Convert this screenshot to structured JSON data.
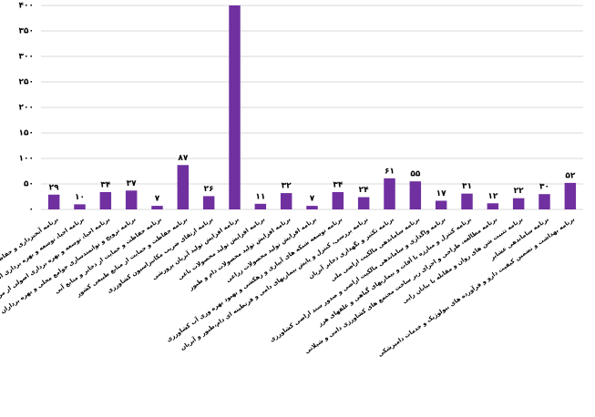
{
  "chart_data": {
    "type": "bar",
    "color": "#7030a0",
    "grid": true,
    "ylim": [
      0,
      400
    ],
    "yticks": [
      {
        "value": 0,
        "label": "۰"
      },
      {
        "value": 50,
        "label": "۵۰"
      },
      {
        "value": 100,
        "label": "۱۰۰"
      },
      {
        "value": 150,
        "label": "۱۵۰"
      },
      {
        "value": 200,
        "label": "۲۰۰"
      },
      {
        "value": 250,
        "label": "۲۵۰"
      },
      {
        "value": 300,
        "label": "۳۰۰"
      },
      {
        "value": 350,
        "label": "۳۵۰"
      },
      {
        "value": 400,
        "label": "۴۰۰"
      }
    ],
    "categories": [
      "برنامه آبخیزداری و حفاظت خاک",
      "برنامه احیا، توسعه و بهره برداری اصولی از جنگلهای",
      "برنامه احیا، توسعه و بهره برداری اصولی از مراتع کشور",
      "برنامه ترویج و توانمندسازی جوامع محلی و بهره برداران",
      "برنامه حفاظت و حمایت از ذخایر و منابع آبی",
      "برنامه حفاظت و حمایت از منابع طبیعی کشور",
      "برنامه ارتقای ضریب مکانیزاسیون کشاورزی",
      "برنامه افزایش تولید آبزیان پرورشی",
      "برنامه افزایش تولید محصولات باغی",
      "برنامه افزایش تولید محصولات دام و طیور",
      "برنامه افزایش تولید محصولات زراعی",
      "برنامه توسعه شبکه های آبیاری و زهکشی و بهبود بهره وری آب کشاورزی",
      "برنامه بررسی، کنترل و پایش بیماریهای دامی و قرنطینه ای دام،طیور و آبزیان",
      "برنامه تکثیر و نگهداری ذخایر آبزیان",
      "برنامه ساماندهی مالکیت اراضی ملی",
      "برنامه واگذاری و ساماندهی مالکیت اراضی و صدور سند اراضی کشاورزی",
      "برنامه کنترل و مبارزه با آفات و بیماریهای گیاهی و علفهای هرز",
      "برنامه مطالعه، طراحی و اجرای زیر ساخت مجتمع های کشاورزی دامی و شیلاتی",
      "برنامه تثبیت شن های روان و مقابله با بیابان زایی",
      "برنامه ساماندهی عشایر",
      "برنامه بهداشت و تضمین کیفیت دارو و فرآورده های بیولوژیک و خدمات دامپزشکی"
    ],
    "values": [
      29,
      10,
      34,
      37,
      7,
      87,
      26,
      400,
      11,
      32,
      7,
      34,
      24,
      61,
      55,
      17,
      31,
      12,
      22,
      30,
      52
    ],
    "value_labels": [
      "۲۹",
      "۱۰",
      "۳۴",
      "۳۷",
      "۷",
      "۸۷",
      "۲۶",
      null,
      "۱۱",
      "۳۲",
      "۷",
      "۳۴",
      "۲۴",
      "۶۱",
      "۵۵",
      "۱۷",
      "۳۱",
      "۱۲",
      "۲۲",
      "۳۰",
      "۵۲"
    ]
  }
}
